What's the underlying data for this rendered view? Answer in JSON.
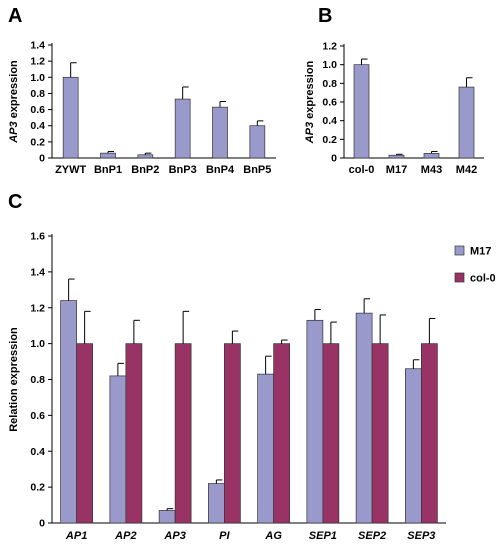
{
  "panels": {
    "a": "A",
    "b": "B",
    "c": "C"
  },
  "colors": {
    "blue": "#9999cc",
    "red": "#993366",
    "axis": "#000000"
  },
  "chart_data": [
    {
      "id": "A",
      "type": "bar",
      "ylabel_gene": "AP3",
      "ylabel_rest": " expression",
      "ylim": [
        0,
        1.4
      ],
      "yticks": [
        "0",
        "0.2",
        "0.4",
        "0.6",
        "0.8",
        "1.0",
        "1.2",
        "1.4"
      ],
      "categories": [
        "ZYWT",
        "BnP1",
        "BnP2",
        "BnP3",
        "BnP4",
        "BnP5"
      ],
      "values": [
        1.0,
        0.06,
        0.04,
        0.73,
        0.63,
        0.4
      ],
      "errors": [
        0.18,
        0.02,
        0.02,
        0.15,
        0.07,
        0.06
      ]
    },
    {
      "id": "B",
      "type": "bar",
      "ylabel_gene": "AP3",
      "ylabel_rest": " expression",
      "ylim": [
        0,
        1.2
      ],
      "yticks": [
        "0",
        "0.2",
        "0.4",
        "0.6",
        "0.8",
        "1.0",
        "1.2"
      ],
      "categories": [
        "col-0",
        "M17",
        "M43",
        "M42"
      ],
      "values": [
        1.0,
        0.03,
        0.05,
        0.76
      ],
      "errors": [
        0.06,
        0.01,
        0.02,
        0.1
      ]
    },
    {
      "id": "C",
      "type": "bar",
      "ylabel": "Relation expression",
      "ylim": [
        0,
        1.6
      ],
      "yticks": [
        "0",
        "0.2",
        "0.4",
        "0.6",
        "0.8",
        "1.0",
        "1.2",
        "1.4",
        "1.6"
      ],
      "categories": [
        "AP1",
        "AP2",
        "AP3",
        "PI",
        "AG",
        "SEP1",
        "SEP2",
        "SEP3"
      ],
      "series": [
        {
          "name": "M17",
          "values": [
            1.24,
            0.82,
            0.07,
            0.22,
            0.83,
            1.13,
            1.17,
            0.86
          ],
          "errors": [
            0.12,
            0.07,
            0.01,
            0.02,
            0.1,
            0.06,
            0.08,
            0.05
          ]
        },
        {
          "name": "col-0",
          "values": [
            1.0,
            1.0,
            1.0,
            1.0,
            1.0,
            1.0,
            1.0,
            1.0
          ],
          "errors": [
            0.18,
            0.13,
            0.18,
            0.07,
            0.02,
            0.12,
            0.16,
            0.14
          ]
        }
      ],
      "legend": "top-right"
    }
  ]
}
